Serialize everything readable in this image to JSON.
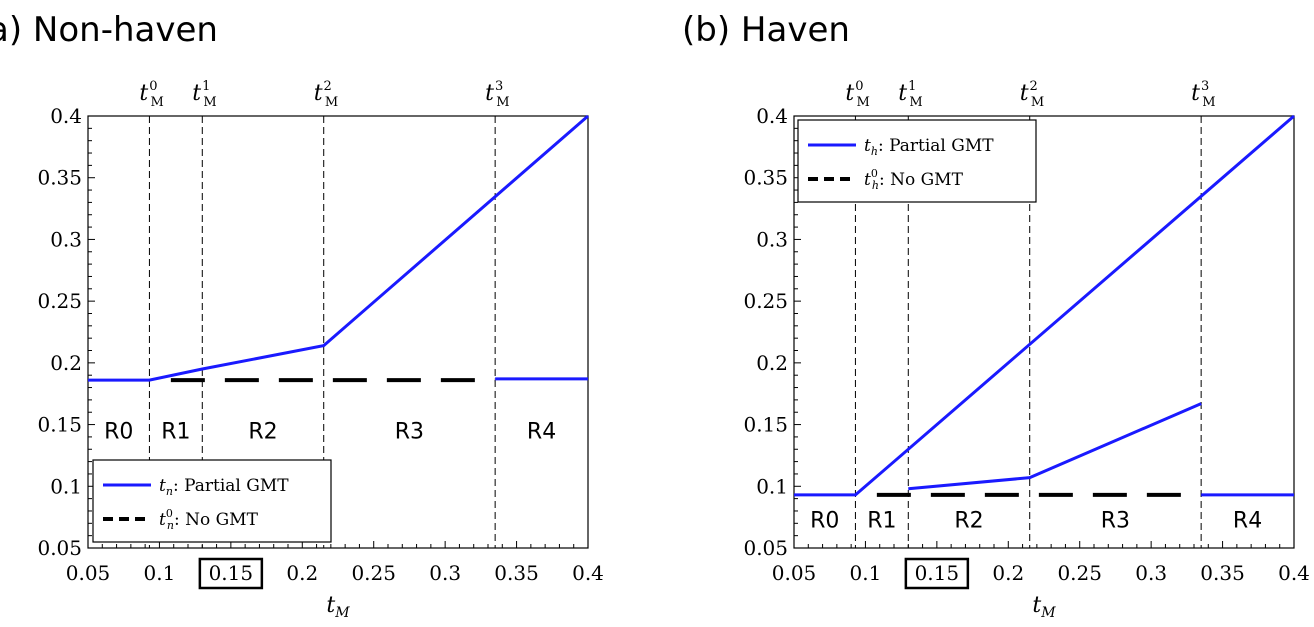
{
  "chart_data": [
    {
      "type": "line",
      "title": "a) Non-haven",
      "xlabel": "t_M",
      "ylabel": "",
      "xlim": [
        0.05,
        0.4
      ],
      "ylim": [
        0.05,
        0.4
      ],
      "xticks": [
        "0.05",
        "0.1",
        "0.15",
        "0.2",
        "0.25",
        "0.3",
        "0.35",
        "0.4"
      ],
      "yticks": [
        "0.05",
        "0.1",
        "0.15",
        "0.2",
        "0.25",
        "0.3",
        "0.35",
        "0.4"
      ],
      "boxed_xtick": "0.15",
      "thresholds": [
        {
          "base": "t",
          "sup": "0",
          "sub": "M",
          "x": 0.093
        },
        {
          "base": "t",
          "sup": "1",
          "sub": "M",
          "x": 0.13
        },
        {
          "base": "t",
          "sup": "2",
          "sub": "M",
          "x": 0.215
        },
        {
          "base": "t",
          "sup": "3",
          "sub": "M",
          "x": 0.335
        }
      ],
      "regions": [
        "R0",
        "R1",
        "R2",
        "R3",
        "R4"
      ],
      "regions_y": 0.145,
      "legend_position": "bottom-left",
      "series": [
        {
          "name": "Partial GMT",
          "var": "t",
          "sub": "n",
          "sup": "",
          "style": "solid",
          "color": "#1a1aff",
          "segments": [
            {
              "x": [
                0.05,
                0.093,
                0.13,
                0.215,
                0.4
              ],
              "y": [
                0.186,
                0.186,
                0.195,
                0.214,
                0.4
              ]
            }
          ]
        },
        {
          "name": "No GMT",
          "var": "t",
          "sub": "n",
          "sup": "0",
          "style": "dashed",
          "color": "#000000",
          "segments": [
            {
              "x": [
                0.108,
                0.335
              ],
              "y": [
                0.186,
                0.186
              ]
            },
            {
              "x": [
                0.335,
                0.4
              ],
              "y": [
                0.187,
                0.187
              ],
              "color": "#1a1aff",
              "style": "solid"
            }
          ]
        }
      ]
    },
    {
      "type": "line",
      "title": "(b) Haven",
      "xlabel": "t_M",
      "ylabel": "",
      "xlim": [
        0.05,
        0.4
      ],
      "ylim": [
        0.05,
        0.4
      ],
      "xticks": [
        "0.05",
        "0.1",
        "0.15",
        "0.2",
        "0.25",
        "0.3",
        "0.35",
        "0.4"
      ],
      "yticks": [
        "0.05",
        "0.1",
        "0.15",
        "0.2",
        "0.25",
        "0.3",
        "0.35",
        "0.4"
      ],
      "boxed_xtick": "0.15",
      "thresholds": [
        {
          "base": "t",
          "sup": "0",
          "sub": "M",
          "x": 0.093
        },
        {
          "base": "t",
          "sup": "1",
          "sub": "M",
          "x": 0.13
        },
        {
          "base": "t",
          "sup": "2",
          "sub": "M",
          "x": 0.215
        },
        {
          "base": "t",
          "sup": "3",
          "sub": "M",
          "x": 0.335
        }
      ],
      "regions": [
        "R0",
        "R1",
        "R2",
        "R3",
        "R4"
      ],
      "regions_y": 0.073,
      "legend_position": "top-left",
      "series": [
        {
          "name": "Partial GMT",
          "var": "t",
          "sub": "h",
          "sup": "",
          "style": "solid",
          "color": "#1a1aff",
          "segments": [
            {
              "x": [
                0.05,
                0.093,
                0.4
              ],
              "y": [
                0.093,
                0.093,
                0.4
              ]
            },
            {
              "x": [
                0.13,
                0.215,
                0.335
              ],
              "y": [
                0.098,
                0.107,
                0.167
              ]
            }
          ]
        },
        {
          "name": "No GMT",
          "var": "t",
          "sub": "h",
          "sup": "0",
          "style": "dashed",
          "color": "#000000",
          "segments": [
            {
              "x": [
                0.108,
                0.335
              ],
              "y": [
                0.093,
                0.093
              ]
            },
            {
              "x": [
                0.335,
                0.4
              ],
              "y": [
                0.093,
                0.093
              ],
              "color": "#1a1aff",
              "style": "solid"
            }
          ]
        }
      ]
    }
  ]
}
